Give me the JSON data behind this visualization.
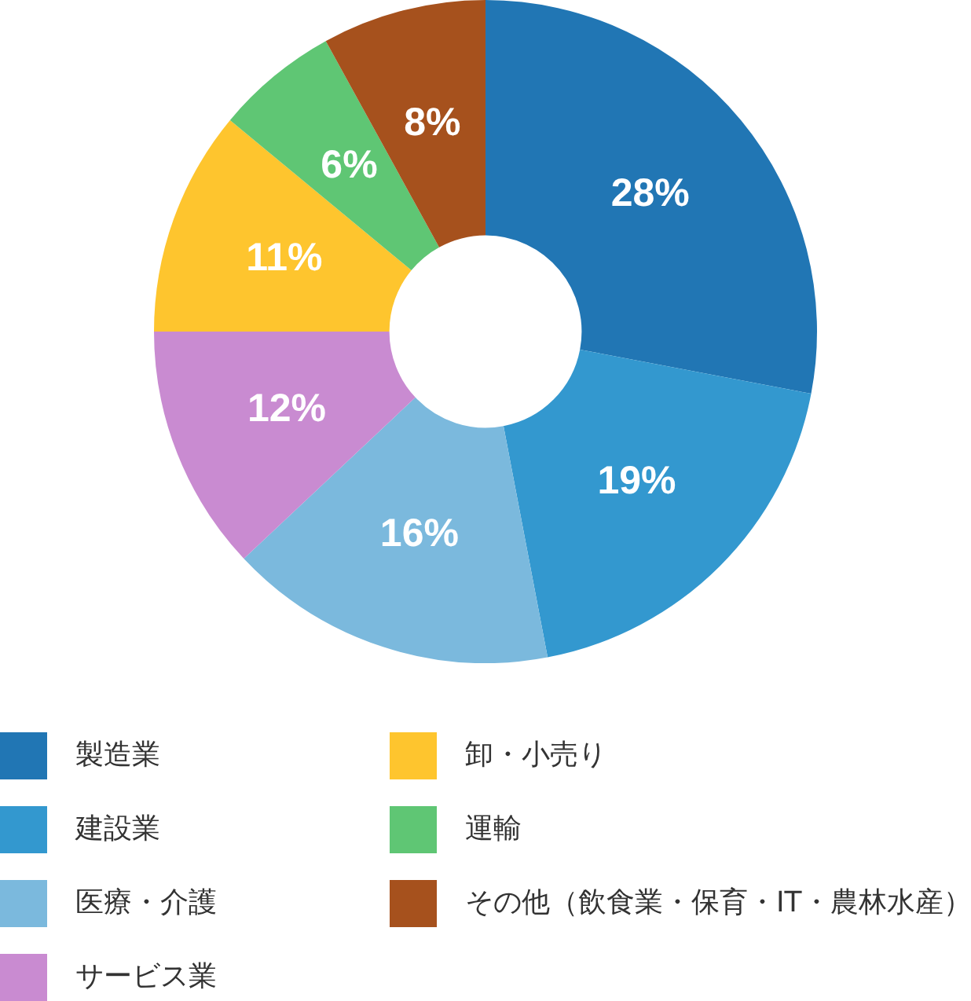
{
  "chart_data": {
    "type": "donut",
    "categories": [
      "製造業",
      "建設業",
      "医療・介護",
      "サービス業",
      "卸・小売り",
      "運輸",
      "その他（飲食業・保育・IT・農林水産）"
    ],
    "values": [
      28,
      19,
      16,
      12,
      11,
      6,
      8
    ],
    "colors": [
      "#2176b4",
      "#3398cf",
      "#7bb9dd",
      "#c98bd1",
      "#fec52e",
      "#5fc674",
      "#a6511d"
    ],
    "value_labels": [
      "28%",
      "19%",
      "16%",
      "12%",
      "11%",
      "6%",
      "8%"
    ],
    "legend": "bottom"
  }
}
